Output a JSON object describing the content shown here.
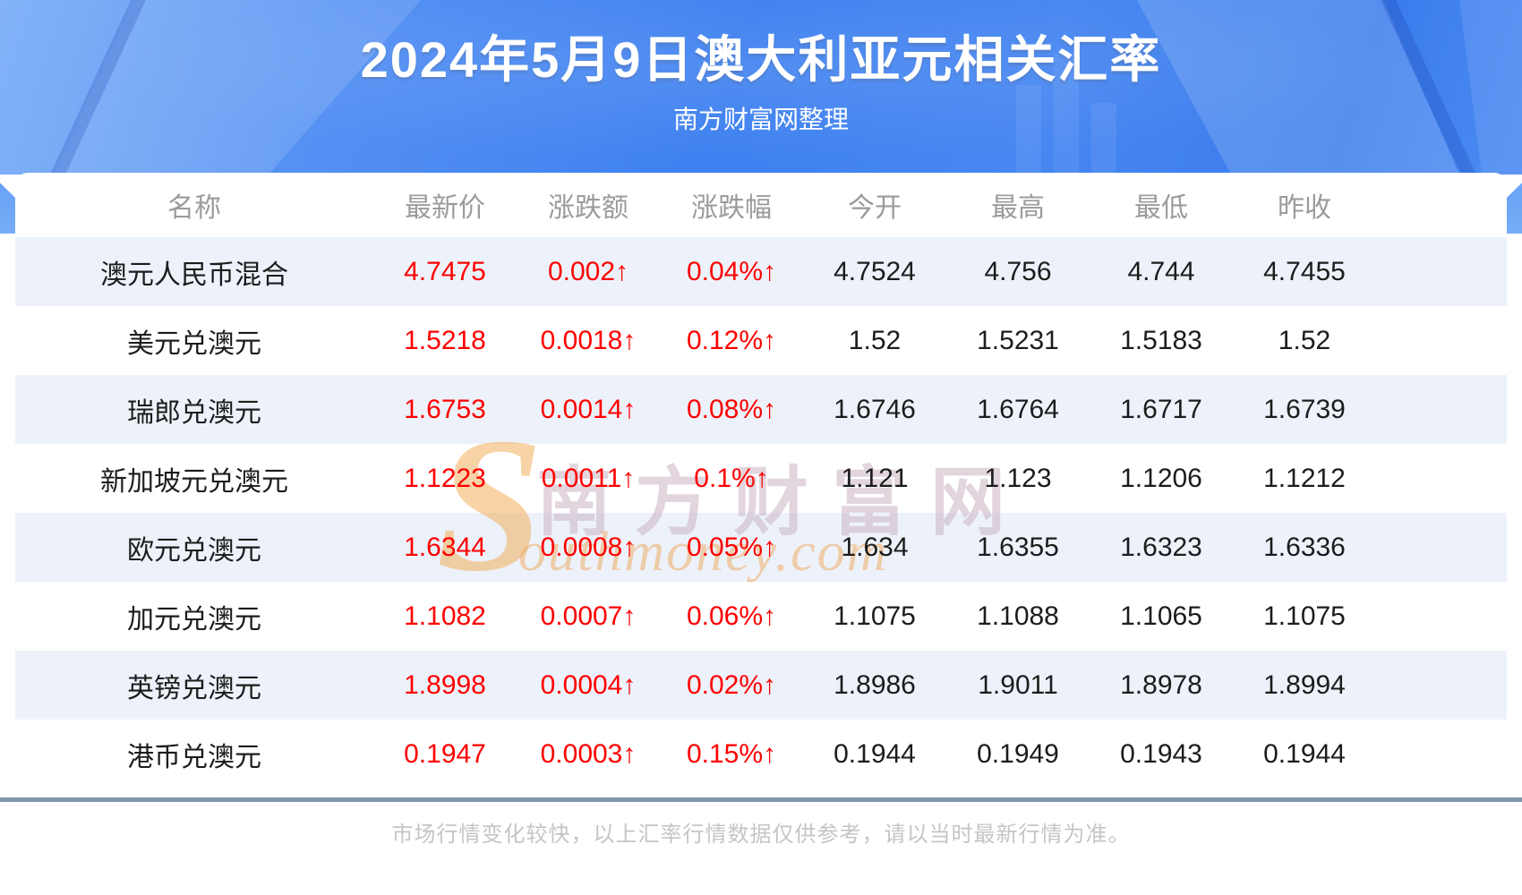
{
  "header": {
    "title": "2024年5月9日澳大利亚元相关汇率",
    "subtitle": "南方财富网整理"
  },
  "table": {
    "columns": [
      "名称",
      "最新价",
      "涨跌额",
      "涨跌幅",
      "今开",
      "最高",
      "最低",
      "昨收"
    ],
    "rows": [
      {
        "name": "澳元人民币混合",
        "latest": "4.7475",
        "change": "0.002↑",
        "change_pct": "0.04%↑",
        "open": "4.7524",
        "high": "4.756",
        "low": "4.744",
        "prev_close": "4.7455"
      },
      {
        "name": "美元兑澳元",
        "latest": "1.5218",
        "change": "0.0018↑",
        "change_pct": "0.12%↑",
        "open": "1.52",
        "high": "1.5231",
        "low": "1.5183",
        "prev_close": "1.52"
      },
      {
        "name": "瑞郎兑澳元",
        "latest": "1.6753",
        "change": "0.0014↑",
        "change_pct": "0.08%↑",
        "open": "1.6746",
        "high": "1.6764",
        "low": "1.6717",
        "prev_close": "1.6739"
      },
      {
        "name": "新加坡元兑澳元",
        "latest": "1.1223",
        "change": "0.0011↑",
        "change_pct": "0.1%↑",
        "open": "1.121",
        "high": "1.123",
        "low": "1.1206",
        "prev_close": "1.1212"
      },
      {
        "name": "欧元兑澳元",
        "latest": "1.6344",
        "change": "0.0008↑",
        "change_pct": "0.05%↑",
        "open": "1.634",
        "high": "1.6355",
        "low": "1.6323",
        "prev_close": "1.6336"
      },
      {
        "name": "加元兑澳元",
        "latest": "1.1082",
        "change": "0.0007↑",
        "change_pct": "0.06%↑",
        "open": "1.1075",
        "high": "1.1088",
        "low": "1.1065",
        "prev_close": "1.1075"
      },
      {
        "name": "英镑兑澳元",
        "latest": "1.8998",
        "change": "0.0004↑",
        "change_pct": "0.02%↑",
        "open": "1.8986",
        "high": "1.9011",
        "low": "1.8978",
        "prev_close": "1.8994"
      },
      {
        "name": "港币兑澳元",
        "latest": "0.1947",
        "change": "0.0003↑",
        "change_pct": "0.15%↑",
        "open": "0.1944",
        "high": "0.1949",
        "low": "0.1943",
        "prev_close": "0.1944"
      }
    ]
  },
  "watermark": {
    "cn": "南方财富网",
    "en_first_letter": "S",
    "en_rest": "outhmoney.com"
  },
  "footer": {
    "disclaimer": "市场行情变化较快，以上汇率行情数据仅供参考，请以当时最新行情为准。"
  },
  "colors": {
    "up_red": "#fe0000",
    "row_alt_blue": "#edf2fa",
    "hero_blue": "#3d80f0",
    "divider": "#8197ac",
    "header_gray": "#9b9b9b"
  },
  "chart_data": {
    "type": "table",
    "title": "2024年5月9日澳大利亚元相关汇率",
    "source_note": "南方财富网整理",
    "columns": [
      "名称",
      "最新价",
      "涨跌额",
      "涨跌幅",
      "今开",
      "最高",
      "最低",
      "昨收"
    ],
    "rows": [
      [
        "澳元人民币混合",
        4.7475,
        "0.002↑",
        "0.04%↑",
        4.7524,
        4.756,
        4.744,
        4.7455
      ],
      [
        "美元兑澳元",
        1.5218,
        "0.0018↑",
        "0.12%↑",
        1.52,
        1.5231,
        1.5183,
        1.52
      ],
      [
        "瑞郎兑澳元",
        1.6753,
        "0.0014↑",
        "0.08%↑",
        1.6746,
        1.6764,
        1.6717,
        1.6739
      ],
      [
        "新加坡元兑澳元",
        1.1223,
        "0.0011↑",
        "0.1%↑",
        1.121,
        1.123,
        1.1206,
        1.1212
      ],
      [
        "欧元兑澳元",
        1.6344,
        "0.0008↑",
        "0.05%↑",
        1.634,
        1.6355,
        1.6323,
        1.6336
      ],
      [
        "加元兑澳元",
        1.1082,
        "0.0007↑",
        "0.06%↑",
        1.1075,
        1.1088,
        1.1065,
        1.1075
      ],
      [
        "英镑兑澳元",
        1.8998,
        "0.0004↑",
        "0.02%↑",
        1.8986,
        1.9011,
        1.8978,
        1.8994
      ],
      [
        "港币兑澳元",
        0.1947,
        "0.0003↑",
        "0.15%↑",
        0.1944,
        0.1949,
        0.1943,
        0.1944
      ]
    ]
  }
}
